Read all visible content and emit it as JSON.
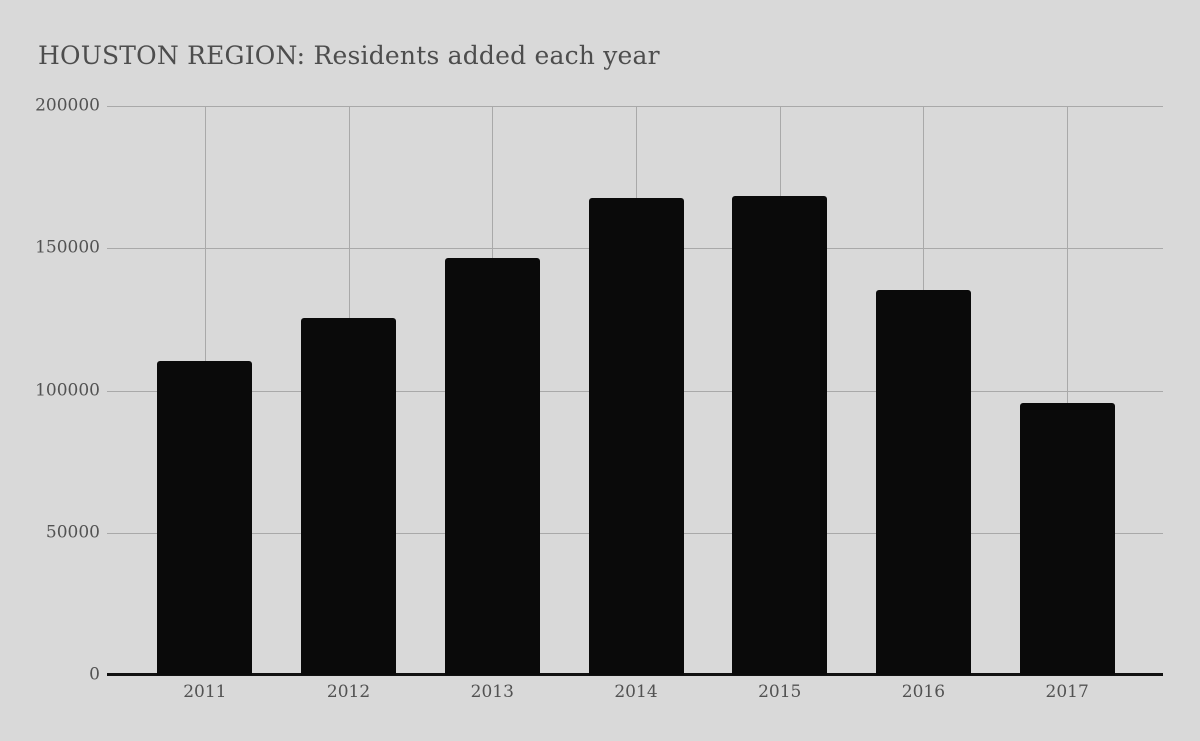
{
  "title": "HOUSTON REGION: Residents added each year",
  "colors": {
    "background": "#d9d9d9",
    "bar": "#0a0a0a",
    "grid": "#a9a9a9",
    "axis_line": "#111111",
    "title_text": "#4d4d4d",
    "tick_text": "#525252"
  },
  "chart_data": {
    "type": "bar",
    "title": "HOUSTON REGION: Residents added each year",
    "categories": [
      "2011",
      "2012",
      "2013",
      "2014",
      "2015",
      "2016",
      "2017"
    ],
    "values": [
      110500,
      125500,
      146500,
      167500,
      168500,
      135500,
      95500
    ],
    "xlabel": "",
    "ylabel": "",
    "ylim": [
      0,
      200000
    ],
    "ytick_interval": 50000,
    "ytick_labels": [
      "200000",
      "150000",
      "100000",
      "50000",
      "0"
    ],
    "grid": "both",
    "legend_position": "none",
    "bar_corner": "slightly-rounded-top"
  }
}
